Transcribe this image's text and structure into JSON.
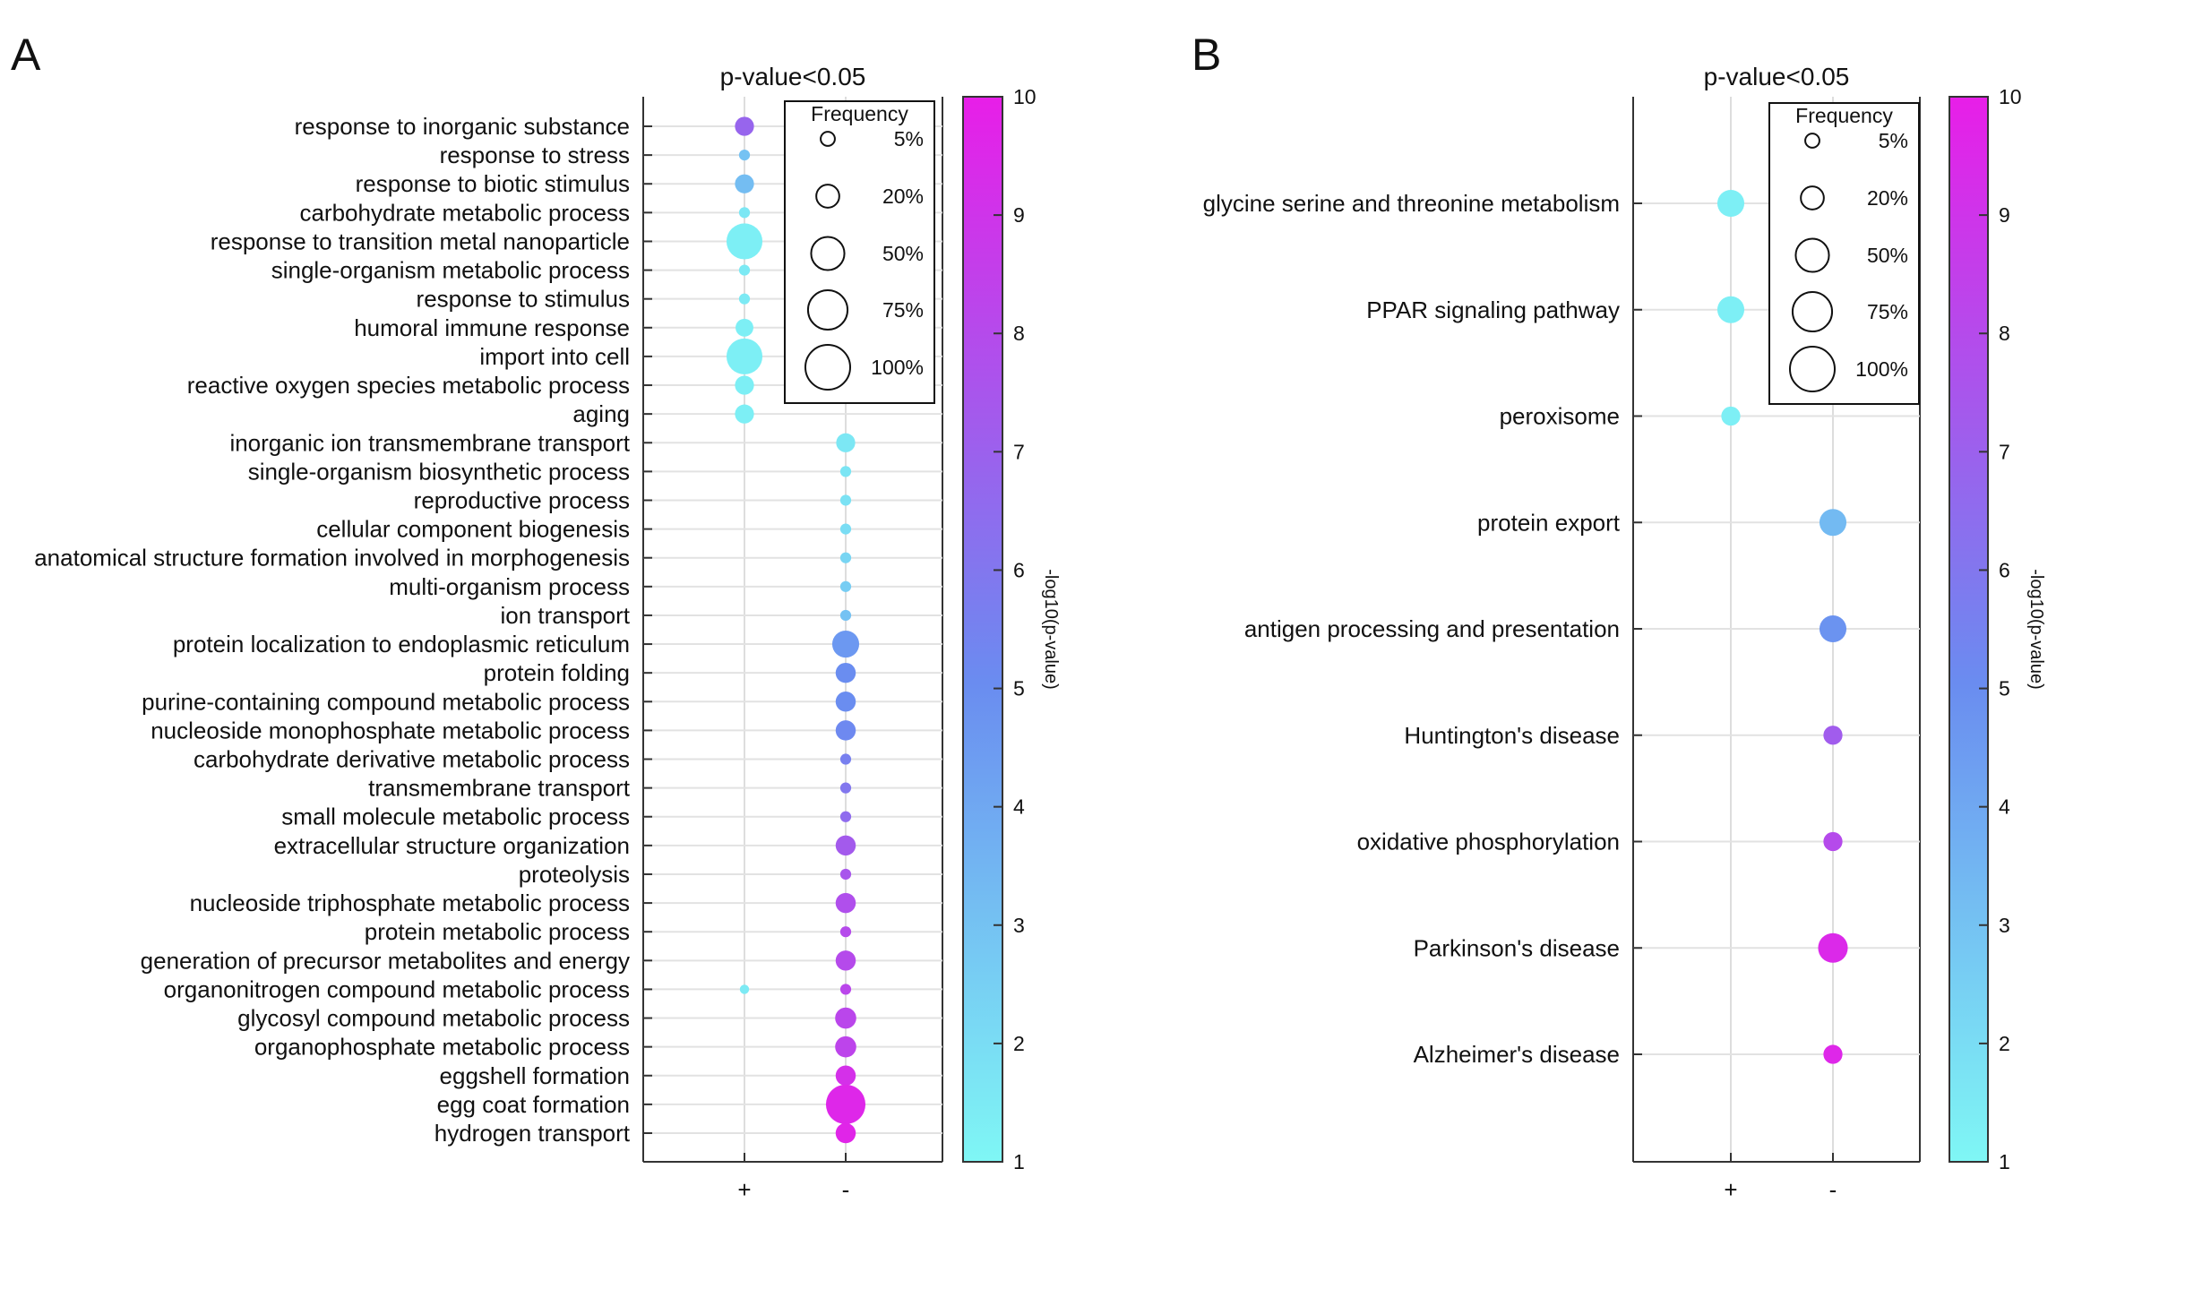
{
  "figure": {
    "colorscale": {
      "low": "#7ff7f5",
      "mid": "#6a8cf0",
      "high": "#e81ee8"
    }
  },
  "chart_data": [
    {
      "type": "scatter",
      "panel": "A",
      "title": "p-value<0.05",
      "categories_x": [
        "+",
        "-"
      ],
      "terms": [
        "response to inorganic substance",
        "response to stress",
        "response to biotic stimulus",
        "carbohydrate metabolic process",
        "response to transition metal nanoparticle",
        "single-organism metabolic process",
        "response to stimulus",
        "humoral immune response",
        "import into cell",
        "reactive oxygen species metabolic process",
        "aging",
        "inorganic ion transmembrane transport",
        "single-organism biosynthetic process",
        "reproductive process",
        "cellular component biogenesis",
        "anatomical structure formation involved in morphogenesis",
        "multi-organism process",
        "ion transport",
        "protein localization to endoplasmic reticulum",
        "protein folding",
        "purine-containing compound metabolic process",
        "nucleoside monophosphate metabolic process",
        "carbohydrate derivative metabolic process",
        "transmembrane transport",
        "small molecule metabolic process",
        "extracellular structure organization",
        "proteolysis",
        "nucleoside triphosphate metabolic process",
        "protein metabolic process",
        "generation of precursor metabolites and energy",
        "organonitrogen compound metabolic process",
        "glycosyl compound metabolic process",
        "organophosphate metabolic process",
        "eggshell formation",
        "egg coat formation",
        "hydrogen transport"
      ],
      "points": [
        {
          "term": "response to inorganic substance",
          "x": "+",
          "frequency": 12,
          "neglog10p": 6.8
        },
        {
          "term": "response to stress",
          "x": "+",
          "frequency": 2,
          "neglog10p": 3.0
        },
        {
          "term": "response to biotic stimulus",
          "x": "+",
          "frequency": 12,
          "neglog10p": 3.2
        },
        {
          "term": "carbohydrate metabolic process",
          "x": "+",
          "frequency": 2,
          "neglog10p": 1.6
        },
        {
          "term": "response to transition metal nanoparticle",
          "x": "+",
          "frequency": 60,
          "neglog10p": 1.3
        },
        {
          "term": "single-organism metabolic process",
          "x": "+",
          "frequency": 2,
          "neglog10p": 1.5
        },
        {
          "term": "response to stimulus",
          "x": "+",
          "frequency": 2,
          "neglog10p": 1.5
        },
        {
          "term": "humoral immune response",
          "x": "+",
          "frequency": 10,
          "neglog10p": 1.3
        },
        {
          "term": "import into cell",
          "x": "+",
          "frequency": 60,
          "neglog10p": 1.3
        },
        {
          "term": "reactive oxygen species metabolic process",
          "x": "+",
          "frequency": 12,
          "neglog10p": 1.3
        },
        {
          "term": "aging",
          "x": "+",
          "frequency": 12,
          "neglog10p": 1.3
        },
        {
          "term": "inorganic ion transmembrane transport",
          "x": "-",
          "frequency": 12,
          "neglog10p": 1.6
        },
        {
          "term": "single-organism biosynthetic process",
          "x": "-",
          "frequency": 2,
          "neglog10p": 1.7
        },
        {
          "term": "reproductive process",
          "x": "-",
          "frequency": 2,
          "neglog10p": 1.8
        },
        {
          "term": "cellular component biogenesis",
          "x": "-",
          "frequency": 2,
          "neglog10p": 2.0
        },
        {
          "term": "anatomical structure formation involved in morphogenesis",
          "x": "-",
          "frequency": 2,
          "neglog10p": 2.3
        },
        {
          "term": "multi-organism process",
          "x": "-",
          "frequency": 2,
          "neglog10p": 2.6
        },
        {
          "term": "ion transport",
          "x": "-",
          "frequency": 2,
          "neglog10p": 3.0
        },
        {
          "term": "protein localization to endoplasmic reticulum",
          "x": "-",
          "frequency": 30,
          "neglog10p": 4.6
        },
        {
          "term": "protein folding",
          "x": "-",
          "frequency": 14,
          "neglog10p": 5.0
        },
        {
          "term": "purine-containing compound metabolic process",
          "x": "-",
          "frequency": 14,
          "neglog10p": 5.0
        },
        {
          "term": "nucleoside monophosphate metabolic process",
          "x": "-",
          "frequency": 14,
          "neglog10p": 5.2
        },
        {
          "term": "carbohydrate derivative metabolic process",
          "x": "-",
          "frequency": 2,
          "neglog10p": 5.6
        },
        {
          "term": "transmembrane transport",
          "x": "-",
          "frequency": 2,
          "neglog10p": 6.0
        },
        {
          "term": "small molecule metabolic process",
          "x": "-",
          "frequency": 2,
          "neglog10p": 6.5
        },
        {
          "term": "extracellular structure organization",
          "x": "-",
          "frequency": 14,
          "neglog10p": 7.3
        },
        {
          "term": "proteolysis",
          "x": "-",
          "frequency": 2,
          "neglog10p": 7.5
        },
        {
          "term": "nucleoside triphosphate metabolic process",
          "x": "-",
          "frequency": 14,
          "neglog10p": 7.8
        },
        {
          "term": "protein metabolic process",
          "x": "-",
          "frequency": 2,
          "neglog10p": 8.0
        },
        {
          "term": "generation of precursor metabolites and energy",
          "x": "-",
          "frequency": 14,
          "neglog10p": 8.0
        },
        {
          "term": "organonitrogen compound metabolic process",
          "x": "+",
          "frequency": 1,
          "neglog10p": 1.5
        },
        {
          "term": "organonitrogen compound metabolic process",
          "x": "-",
          "frequency": 2,
          "neglog10p": 8.2
        },
        {
          "term": "glycosyl compound metabolic process",
          "x": "-",
          "frequency": 16,
          "neglog10p": 8.2
        },
        {
          "term": "organophosphate metabolic process",
          "x": "-",
          "frequency": 16,
          "neglog10p": 8.3
        },
        {
          "term": "eggshell formation",
          "x": "-",
          "frequency": 14,
          "neglog10p": 9.2
        },
        {
          "term": "egg coat formation",
          "x": "-",
          "frequency": 75,
          "neglog10p": 9.6
        },
        {
          "term": "hydrogen transport",
          "x": "-",
          "frequency": 14,
          "neglog10p": 9.7
        }
      ],
      "legend": {
        "title": "Frequency",
        "entries": [
          "5%",
          "20%",
          "50%",
          "75%",
          "100%"
        ],
        "values": [
          5,
          20,
          50,
          75,
          100
        ],
        "placement": "top-right"
      },
      "colorbar": {
        "label": "-log10(p-value)",
        "ticks": [
          "1",
          "2",
          "3",
          "4",
          "5",
          "6",
          "7",
          "8",
          "9",
          "10"
        ],
        "min": 1,
        "max": 10
      }
    },
    {
      "type": "scatter",
      "panel": "B",
      "title": "p-value<0.05",
      "categories_x": [
        "+",
        "-"
      ],
      "terms": [
        "glycine serine and threonine metabolism",
        "PPAR signaling pathway",
        "peroxisome",
        "protein export",
        "antigen processing and presentation",
        "Huntington's disease",
        "oxidative phosphorylation",
        "Parkinson's disease",
        "Alzheimer's disease"
      ],
      "points": [
        {
          "term": "glycine serine and threonine metabolism",
          "x": "+",
          "frequency": 30,
          "neglog10p": 1.3
        },
        {
          "term": "PPAR signaling pathway",
          "x": "+",
          "frequency": 30,
          "neglog10p": 1.3
        },
        {
          "term": "peroxisome",
          "x": "+",
          "frequency": 12,
          "neglog10p": 1.3
        },
        {
          "term": "protein export",
          "x": "-",
          "frequency": 30,
          "neglog10p": 3.3
        },
        {
          "term": "antigen processing and presentation",
          "x": "-",
          "frequency": 30,
          "neglog10p": 4.8
        },
        {
          "term": "Huntington's disease",
          "x": "-",
          "frequency": 12,
          "neglog10p": 7.2
        },
        {
          "term": "oxidative phosphorylation",
          "x": "-",
          "frequency": 12,
          "neglog10p": 8.0
        },
        {
          "term": "Parkinson's disease",
          "x": "-",
          "frequency": 38,
          "neglog10p": 9.5
        },
        {
          "term": "Alzheimer's disease",
          "x": "-",
          "frequency": 12,
          "neglog10p": 9.6
        }
      ],
      "legend": {
        "title": "Frequency",
        "entries": [
          "5%",
          "20%",
          "50%",
          "75%",
          "100%"
        ],
        "values": [
          5,
          20,
          50,
          75,
          100
        ],
        "placement": "top-right"
      },
      "colorbar": {
        "label": "-log10(p-value)",
        "ticks": [
          "1",
          "2",
          "3",
          "4",
          "5",
          "6",
          "7",
          "8",
          "9",
          "10"
        ],
        "min": 1,
        "max": 10
      }
    }
  ]
}
